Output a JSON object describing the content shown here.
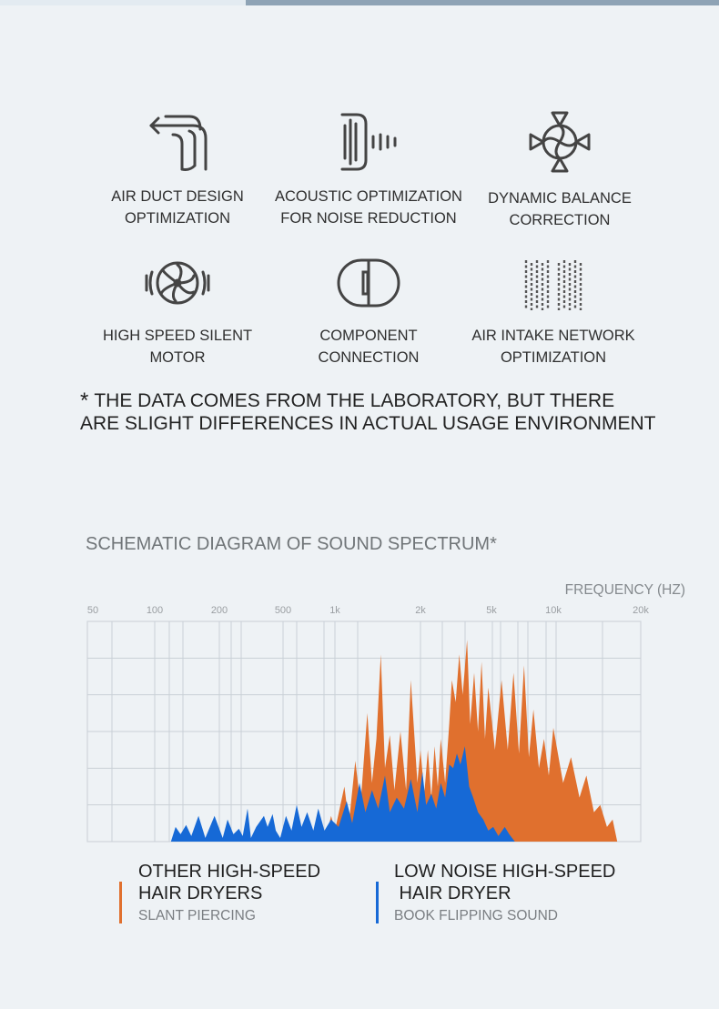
{
  "features": [
    {
      "icon": "air-duct-icon",
      "lines": [
        "AIR DUCT DESIGN",
        "OPTIMIZATION"
      ]
    },
    {
      "icon": "acoustic-icon",
      "lines": [
        "ACOUSTIC OPTIMIZATION",
        "FOR NOISE REDUCTION"
      ]
    },
    {
      "icon": "balance-fan-icon",
      "lines": [
        "DYNAMIC BALANCE",
        "CORRECTION"
      ]
    },
    {
      "icon": "motor-icon",
      "lines": [
        "HIGH SPEED SILENT",
        "MOTOR"
      ]
    },
    {
      "icon": "component-icon",
      "lines": [
        "COMPONENT",
        "CONNECTION"
      ]
    },
    {
      "icon": "air-intake-mesh-icon",
      "lines": [
        "AIR INTAKE NETWORK",
        "OPTIMIZATION"
      ]
    }
  ],
  "note": {
    "star": "*",
    "line1": "THE DATA COMES FROM THE LABORATORY, BUT THERE",
    "line2": "ARE SLIGHT DIFFERENCES IN ACTUAL USAGE ENVIRONMENT"
  },
  "legend": [
    {
      "title1": "OTHER HIGH-SPEED",
      "title2": "HAIR DRYERS",
      "sub": "SLANT PIERCING",
      "color": "#e0702e"
    },
    {
      "title1": "LOW NOISE HIGH-SPEED",
      "title2": " HAIR DRYER",
      "sub": "BOOK FLIPPING SOUND",
      "color": "#1669d6"
    }
  ],
  "chart_data": {
    "type": "area",
    "title": "SCHEMATIC DIAGRAM OF SOUND SPECTRUM*",
    "xlabel": "FREQUENCY (HZ)",
    "ylabel": "",
    "xscale": "log (schematic)",
    "xticks": [
      50,
      100,
      200,
      500,
      1000,
      2000,
      5000,
      10000,
      20000
    ],
    "xtick_labels": [
      "50",
      "100",
      "200",
      "500",
      "1k",
      "2k",
      "5k",
      "10k",
      "20k"
    ],
    "ylim": [
      0,
      6
    ],
    "grid": true,
    "legend": "bottom",
    "series": [
      {
        "name": "OTHER HIGH-SPEED HAIR DRYERS",
        "color": "#e0702e",
        "points": [
          [
            876,
            0
          ],
          [
            950,
            0.7
          ],
          [
            1000,
            0.3
          ],
          [
            1080,
            1.5
          ],
          [
            1120,
            0.5
          ],
          [
            1180,
            2.2
          ],
          [
            1230,
            1.0
          ],
          [
            1300,
            3.5
          ],
          [
            1350,
            1.6
          ],
          [
            1400,
            2.8
          ],
          [
            1450,
            5.1
          ],
          [
            1500,
            2.0
          ],
          [
            1560,
            2.9
          ],
          [
            1620,
            1.4
          ],
          [
            1700,
            3.0
          ],
          [
            1780,
            1.4
          ],
          [
            1850,
            4.4
          ],
          [
            1950,
            1.6
          ],
          [
            2000,
            2.5
          ],
          [
            2100,
            1.3
          ],
          [
            2200,
            2.5
          ],
          [
            2300,
            1.2
          ],
          [
            2400,
            2.6
          ],
          [
            2500,
            1.5
          ],
          [
            2600,
            2.8
          ],
          [
            2750,
            1.6
          ],
          [
            2900,
            3.2
          ],
          [
            3000,
            4.4
          ],
          [
            3150,
            3.8
          ],
          [
            3300,
            5.1
          ],
          [
            3450,
            4.0
          ],
          [
            3650,
            5.5
          ],
          [
            3800,
            3.2
          ],
          [
            4000,
            4.6
          ],
          [
            4200,
            3.0
          ],
          [
            4400,
            4.9
          ],
          [
            4600,
            2.8
          ],
          [
            4800,
            4.2
          ],
          [
            5200,
            2.5
          ],
          [
            5600,
            4.4
          ],
          [
            6000,
            2.5
          ],
          [
            6400,
            4.6
          ],
          [
            6800,
            2.4
          ],
          [
            7200,
            4.8
          ],
          [
            7600,
            2.3
          ],
          [
            8000,
            3.6
          ],
          [
            8500,
            2.0
          ],
          [
            9000,
            2.8
          ],
          [
            9500,
            1.8
          ],
          [
            10000,
            3.1
          ],
          [
            10800,
            1.6
          ],
          [
            11500,
            2.3
          ],
          [
            12300,
            1.2
          ],
          [
            13000,
            1.8
          ],
          [
            13800,
            0.8
          ],
          [
            14500,
            1.0
          ],
          [
            15300,
            0.4
          ],
          [
            16000,
            0.6
          ],
          [
            16600,
            0
          ]
        ]
      },
      {
        "name": "LOW NOISE HIGH-SPEED HAIR DRYER",
        "color": "#1669d6",
        "points": [
          [
            119,
            0
          ],
          [
            125,
            0.4
          ],
          [
            132,
            0.2
          ],
          [
            140,
            0.45
          ],
          [
            148,
            0.15
          ],
          [
            160,
            0.7
          ],
          [
            172,
            0.1
          ],
          [
            190,
            0.7
          ],
          [
            210,
            0.1
          ],
          [
            225,
            0.6
          ],
          [
            245,
            0.2
          ],
          [
            265,
            0.35
          ],
          [
            280,
            0.15
          ],
          [
            300,
            0.9
          ],
          [
            315,
            0.1
          ],
          [
            340,
            0.4
          ],
          [
            380,
            0.7
          ],
          [
            400,
            0.4
          ],
          [
            430,
            0.75
          ],
          [
            450,
            0.3
          ],
          [
            480,
            0.1
          ],
          [
            520,
            0.7
          ],
          [
            560,
            0.3
          ],
          [
            600,
            1.0
          ],
          [
            640,
            0.4
          ],
          [
            690,
            0.8
          ],
          [
            750,
            0.3
          ],
          [
            800,
            0.9
          ],
          [
            870,
            0.3
          ],
          [
            950,
            0.6
          ],
          [
            1030,
            0.4
          ],
          [
            1100,
            1.1
          ],
          [
            1150,
            0.5
          ],
          [
            1220,
            1.6
          ],
          [
            1280,
            0.8
          ],
          [
            1350,
            1.4
          ],
          [
            1420,
            0.9
          ],
          [
            1500,
            1.8
          ],
          [
            1560,
            0.8
          ],
          [
            1650,
            1.2
          ],
          [
            1750,
            0.9
          ],
          [
            1850,
            1.7
          ],
          [
            1950,
            0.8
          ],
          [
            2050,
            1.9
          ],
          [
            2150,
            1.0
          ],
          [
            2300,
            1.3
          ],
          [
            2450,
            0.9
          ],
          [
            2600,
            1.6
          ],
          [
            2750,
            1.2
          ],
          [
            2900,
            2.1
          ],
          [
            3050,
            2.0
          ],
          [
            3200,
            2.4
          ],
          [
            3350,
            2.1
          ],
          [
            3550,
            2.6
          ],
          [
            3750,
            1.5
          ],
          [
            3950,
            1.2
          ],
          [
            4200,
            0.8
          ],
          [
            4500,
            0.6
          ],
          [
            4800,
            0.3
          ],
          [
            5100,
            0.4
          ],
          [
            5400,
            0.15
          ],
          [
            5800,
            0.4
          ],
          [
            6100,
            0.2
          ],
          [
            6500,
            0
          ]
        ]
      }
    ]
  }
}
